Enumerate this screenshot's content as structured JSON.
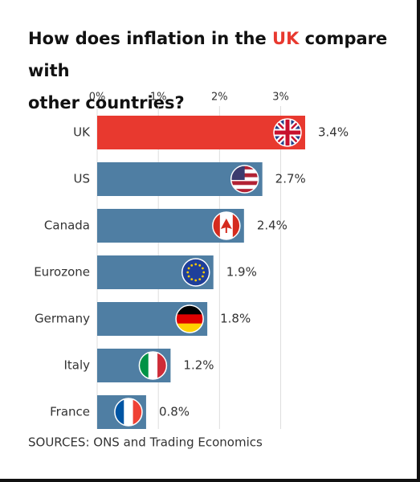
{
  "chart_data": {
    "type": "bar",
    "orientation": "horizontal",
    "title": [
      "How does inflation in the ",
      "UK",
      " compare with",
      "other countries?"
    ],
    "title_highlight_color": "#e8392f",
    "categories": [
      "UK",
      "US",
      "Canada",
      "Eurozone",
      "Germany",
      "Italy",
      "France"
    ],
    "values": [
      3.4,
      2.7,
      2.4,
      1.9,
      1.8,
      1.2,
      0.8
    ],
    "value_labels": [
      "3.4%",
      "2.7%",
      "2.4%",
      "1.9%",
      "1.8%",
      "1.2%",
      "0.8%"
    ],
    "colors": [
      "#e8392f",
      "#4f7ea3",
      "#4f7ea3",
      "#4f7ea3",
      "#4f7ea3",
      "#4f7ea3",
      "#4f7ea3"
    ],
    "xlim": [
      0,
      3.4
    ],
    "xticks": [
      {
        "value": 0,
        "label": "0%"
      },
      {
        "value": 1,
        "label": "1%"
      },
      {
        "value": 2,
        "label": "2%"
      },
      {
        "value": 3,
        "label": "3%"
      }
    ],
    "grid": true,
    "source": "SOURCES: ONS and Trading Economics"
  }
}
